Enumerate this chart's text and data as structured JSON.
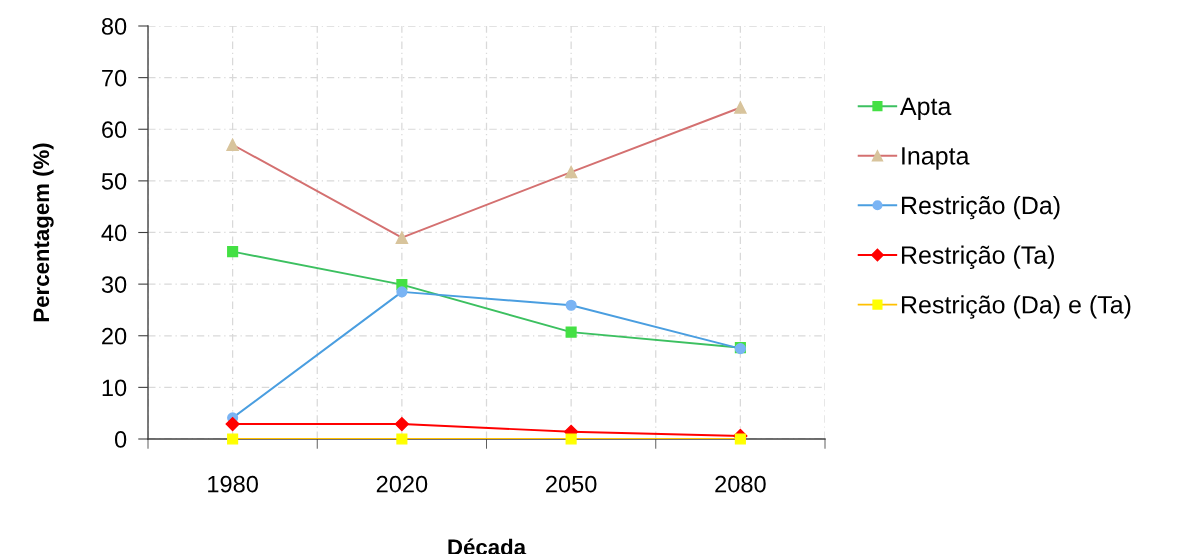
{
  "chart_data": {
    "type": "line",
    "xlabel": "Década",
    "ylabel": "Percentagem (%)",
    "categories": [
      "1980",
      "2020",
      "2050",
      "2080"
    ],
    "ylim": [
      0,
      80
    ],
    "yticks": [
      0,
      10,
      20,
      30,
      40,
      50,
      60,
      70,
      80
    ],
    "grid": true,
    "legend": "right",
    "line_style": "solid",
    "series": [
      {
        "name": "Apta",
        "color": "#3cc060",
        "colors": [
          "#44e044",
          "#44e044",
          "#44e044",
          "#44e044"
        ],
        "marker": "square",
        "values": [
          36.3,
          29.9,
          20.7,
          17.7
        ]
      },
      {
        "name": "Inapta",
        "color": "#d47070",
        "colors": [
          "#d8c49c",
          "#d8c49c",
          "#d8c49c",
          "#d8c49c"
        ],
        "marker": "triangle",
        "values": [
          57.0,
          39.0,
          51.7,
          64.2
        ]
      },
      {
        "name": "Restrição (Da)",
        "color": "#4a9ee0",
        "colors": [
          "#7ab4f4",
          "#7ab4f4",
          "#7ab4f4",
          "#7ab4f4"
        ],
        "marker": "circle",
        "values": [
          4.1,
          28.5,
          25.9,
          17.5
        ]
      },
      {
        "name": "Restrição (Ta)",
        "color": "#ff0000",
        "colors": [
          "#ff0000",
          "#ff0000",
          "#ff0000",
          "#ff0000"
        ],
        "marker": "diamond",
        "values": [
          2.9,
          2.9,
          1.4,
          0.6
        ]
      },
      {
        "name": "Restrição (Da) e (Ta)",
        "color": "#ffc000",
        "colors": [
          "#ffff00",
          "#ffff00",
          "#ffff00",
          "#ffff00"
        ],
        "marker": "square",
        "values": [
          0,
          0,
          0,
          0
        ]
      }
    ]
  }
}
